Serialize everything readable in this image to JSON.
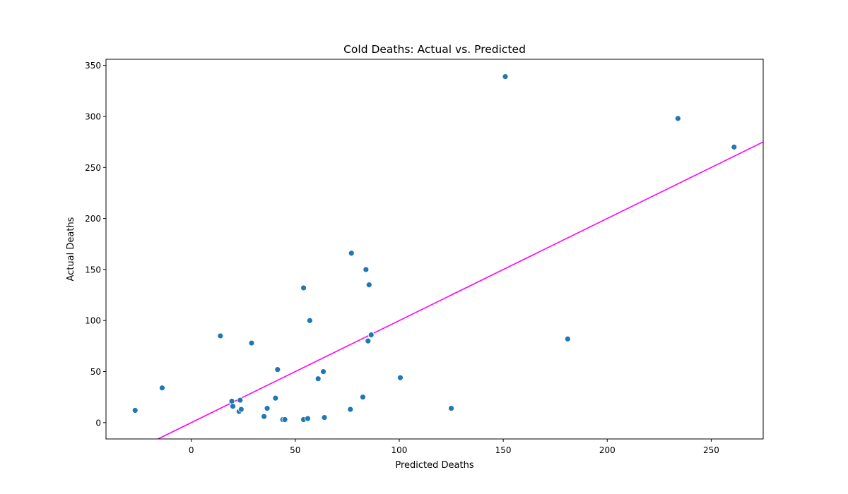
{
  "chart_data": {
    "type": "scatter",
    "title": "Cold Deaths: Actual vs. Predicted",
    "xlabel": "Predicted Deaths",
    "ylabel": "Actual Deaths",
    "xlim": [
      -41,
      275
    ],
    "ylim": [
      -16,
      356
    ],
    "xticks": [
      0,
      50,
      100,
      150,
      200,
      250
    ],
    "yticks": [
      0,
      50,
      100,
      150,
      200,
      250,
      300,
      350
    ],
    "grid": false,
    "colors": {
      "points": "#1f77b4",
      "reference_line": "#ff00ff"
    },
    "reference_line": {
      "type": "y=x"
    },
    "series": [
      {
        "points": [
          [
            -27,
            12
          ],
          [
            -14,
            34
          ],
          [
            14,
            85
          ],
          [
            19.5,
            21
          ],
          [
            20,
            16
          ],
          [
            23,
            11
          ],
          [
            23.5,
            22
          ],
          [
            24,
            13
          ],
          [
            29,
            78
          ],
          [
            35,
            6
          ],
          [
            36.5,
            14
          ],
          [
            40.5,
            24
          ],
          [
            41.5,
            52
          ],
          [
            44,
            3
          ],
          [
            45,
            3
          ],
          [
            54,
            132
          ],
          [
            54,
            3
          ],
          [
            56,
            4
          ],
          [
            57,
            100
          ],
          [
            61,
            43
          ],
          [
            63.5,
            50
          ],
          [
            64,
            5
          ],
          [
            76.5,
            13
          ],
          [
            77,
            166
          ],
          [
            82.5,
            25
          ],
          [
            84,
            150
          ],
          [
            85,
            80
          ],
          [
            85.5,
            135
          ],
          [
            86.5,
            86
          ],
          [
            100.5,
            44
          ],
          [
            125,
            14
          ],
          [
            151,
            339
          ],
          [
            181,
            82
          ],
          [
            234,
            298
          ],
          [
            261,
            270
          ]
        ]
      }
    ]
  }
}
